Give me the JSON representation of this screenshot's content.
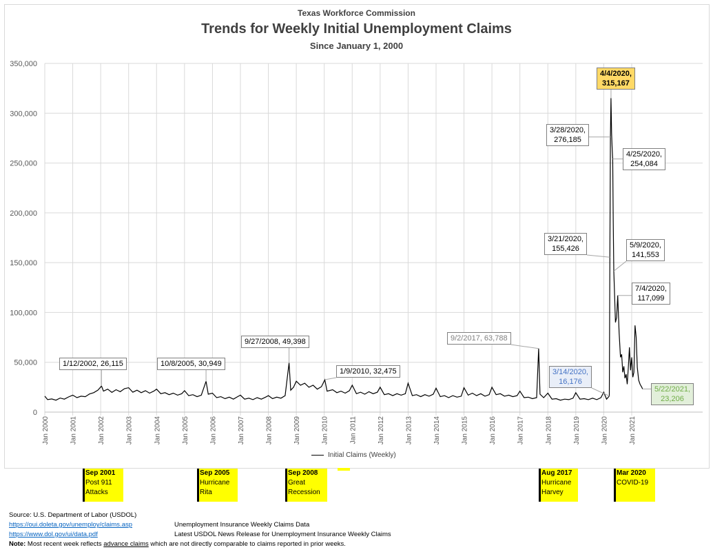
{
  "header": {
    "org": "Texas Workforce Commission",
    "title": "Trends for Weekly Initial Unemployment Claims",
    "subtitle": "Since January 1, 2000"
  },
  "chart_data": {
    "type": "line",
    "title": "Trends for Weekly Initial Unemployment Claims",
    "xlabel": "",
    "ylabel": "",
    "ylim": [
      0,
      350000
    ],
    "yticks": [
      0,
      50000,
      100000,
      150000,
      200000,
      250000,
      300000,
      350000
    ],
    "ytick_labels": [
      "0",
      "50,000",
      "100,000",
      "150,000",
      "200,000",
      "250,000",
      "300,000",
      "350,000"
    ],
    "xlim": [
      2000,
      2021.5
    ],
    "xtick_labels": [
      "Jan 2000",
      "Jan 2001",
      "Jan 2002",
      "Jan 2003",
      "Jan 2004",
      "Jan 2005",
      "Jan 2006",
      "Jan 2007",
      "Jan 2008",
      "Jan 2009",
      "Jan 2010",
      "Jan 2011",
      "Jan 2012",
      "Jan 2013",
      "Jan 2014",
      "Jan 2015",
      "Jan 2016",
      "Jan 2017",
      "Jan 2018",
      "Jan 2019",
      "Jan 2020",
      "Jan 2021"
    ],
    "grid": true,
    "legend": {
      "position": "bottom",
      "label": "Initial Claims (Weekly)"
    },
    "series": [
      {
        "name": "Initial Claims (Weekly)",
        "color": "#000000",
        "points": [
          [
            2000.0,
            16000
          ],
          [
            2000.1,
            12500
          ],
          [
            2000.25,
            13200
          ],
          [
            2000.4,
            12000
          ],
          [
            2000.55,
            14100
          ],
          [
            2000.7,
            13000
          ],
          [
            2000.85,
            15200
          ],
          [
            2001.0,
            17000
          ],
          [
            2001.15,
            14500
          ],
          [
            2001.3,
            16000
          ],
          [
            2001.45,
            15500
          ],
          [
            2001.6,
            18200
          ],
          [
            2001.75,
            19500
          ],
          [
            2001.9,
            22000
          ],
          [
            2002.03,
            26115
          ],
          [
            2002.1,
            21000
          ],
          [
            2002.25,
            23000
          ],
          [
            2002.4,
            19800
          ],
          [
            2002.55,
            22500
          ],
          [
            2002.7,
            20500
          ],
          [
            2002.85,
            23500
          ],
          [
            2003.0,
            24500
          ],
          [
            2003.15,
            20000
          ],
          [
            2003.3,
            22000
          ],
          [
            2003.45,
            19500
          ],
          [
            2003.6,
            21500
          ],
          [
            2003.75,
            19000
          ],
          [
            2003.9,
            21000
          ],
          [
            2004.0,
            23000
          ],
          [
            2004.15,
            18500
          ],
          [
            2004.3,
            19500
          ],
          [
            2004.45,
            17500
          ],
          [
            2004.6,
            19000
          ],
          [
            2004.75,
            17000
          ],
          [
            2004.9,
            18500
          ],
          [
            2005.0,
            21500
          ],
          [
            2005.15,
            16500
          ],
          [
            2005.3,
            17500
          ],
          [
            2005.45,
            15500
          ],
          [
            2005.6,
            17000
          ],
          [
            2005.77,
            30949
          ],
          [
            2005.85,
            18000
          ],
          [
            2006.0,
            19000
          ],
          [
            2006.15,
            14500
          ],
          [
            2006.3,
            15500
          ],
          [
            2006.45,
            13500
          ],
          [
            2006.6,
            15000
          ],
          [
            2006.75,
            13000
          ],
          [
            2006.9,
            15500
          ],
          [
            2007.0,
            17000
          ],
          [
            2007.15,
            13000
          ],
          [
            2007.3,
            14000
          ],
          [
            2007.45,
            12500
          ],
          [
            2007.6,
            14500
          ],
          [
            2007.75,
            13000
          ],
          [
            2007.9,
            15000
          ],
          [
            2008.0,
            16500
          ],
          [
            2008.15,
            13500
          ],
          [
            2008.3,
            15000
          ],
          [
            2008.45,
            14000
          ],
          [
            2008.6,
            16500
          ],
          [
            2008.74,
            49398
          ],
          [
            2008.8,
            22000
          ],
          [
            2008.9,
            25000
          ],
          [
            2009.0,
            31000
          ],
          [
            2009.15,
            27000
          ],
          [
            2009.3,
            29000
          ],
          [
            2009.45,
            25000
          ],
          [
            2009.6,
            27000
          ],
          [
            2009.75,
            23000
          ],
          [
            2009.9,
            25500
          ],
          [
            2010.02,
            32475
          ],
          [
            2010.1,
            21000
          ],
          [
            2010.3,
            22500
          ],
          [
            2010.45,
            19500
          ],
          [
            2010.6,
            21000
          ],
          [
            2010.75,
            19000
          ],
          [
            2010.9,
            21500
          ],
          [
            2011.0,
            27000
          ],
          [
            2011.15,
            18500
          ],
          [
            2011.3,
            20000
          ],
          [
            2011.45,
            18000
          ],
          [
            2011.6,
            20500
          ],
          [
            2011.75,
            18500
          ],
          [
            2011.9,
            20000
          ],
          [
            2012.0,
            25000
          ],
          [
            2012.15,
            17500
          ],
          [
            2012.3,
            18500
          ],
          [
            2012.45,
            16500
          ],
          [
            2012.6,
            18500
          ],
          [
            2012.75,
            17000
          ],
          [
            2012.9,
            18500
          ],
          [
            2013.0,
            29000
          ],
          [
            2013.15,
            16500
          ],
          [
            2013.3,
            17500
          ],
          [
            2013.45,
            15500
          ],
          [
            2013.6,
            17500
          ],
          [
            2013.75,
            16000
          ],
          [
            2013.9,
            18000
          ],
          [
            2014.0,
            24000
          ],
          [
            2014.15,
            15500
          ],
          [
            2014.3,
            16500
          ],
          [
            2014.45,
            14500
          ],
          [
            2014.6,
            16500
          ],
          [
            2014.75,
            15000
          ],
          [
            2014.9,
            16000
          ],
          [
            2015.0,
            24500
          ],
          [
            2015.15,
            17000
          ],
          [
            2015.3,
            19000
          ],
          [
            2015.45,
            16500
          ],
          [
            2015.6,
            18500
          ],
          [
            2015.75,
            16000
          ],
          [
            2015.9,
            17500
          ],
          [
            2016.0,
            25000
          ],
          [
            2016.15,
            17500
          ],
          [
            2016.3,
            18500
          ],
          [
            2016.45,
            16000
          ],
          [
            2016.6,
            17000
          ],
          [
            2016.75,
            15500
          ],
          [
            2016.9,
            16500
          ],
          [
            2017.0,
            21000
          ],
          [
            2017.15,
            14500
          ],
          [
            2017.3,
            15000
          ],
          [
            2017.45,
            13500
          ],
          [
            2017.6,
            14500
          ],
          [
            2017.67,
            63788
          ],
          [
            2017.72,
            18000
          ],
          [
            2017.85,
            14500
          ],
          [
            2018.0,
            19000
          ],
          [
            2018.15,
            13000
          ],
          [
            2018.3,
            13500
          ],
          [
            2018.45,
            12000
          ],
          [
            2018.6,
            13000
          ],
          [
            2018.75,
            12500
          ],
          [
            2018.9,
            14000
          ],
          [
            2019.0,
            19500
          ],
          [
            2019.15,
            13000
          ],
          [
            2019.3,
            13500
          ],
          [
            2019.45,
            12500
          ],
          [
            2019.6,
            14000
          ],
          [
            2019.75,
            12500
          ],
          [
            2019.9,
            14500
          ],
          [
            2020.0,
            20000
          ],
          [
            2020.1,
            13000
          ],
          [
            2020.2,
            16176
          ],
          [
            2020.22,
            155426
          ],
          [
            2020.24,
            276185
          ],
          [
            2020.26,
            315167
          ],
          [
            2020.28,
            280000
          ],
          [
            2020.3,
            265000
          ],
          [
            2020.32,
            254084
          ],
          [
            2020.34,
            190000
          ],
          [
            2020.36,
            141553
          ],
          [
            2020.38,
            125000
          ],
          [
            2020.42,
            90000
          ],
          [
            2020.46,
            95000
          ],
          [
            2020.5,
            117099
          ],
          [
            2020.55,
            80000
          ],
          [
            2020.6,
            55000
          ],
          [
            2020.64,
            58000
          ],
          [
            2020.68,
            40000
          ],
          [
            2020.72,
            46000
          ],
          [
            2020.76,
            34000
          ],
          [
            2020.8,
            38000
          ],
          [
            2020.84,
            28000
          ],
          [
            2020.88,
            45000
          ],
          [
            2020.92,
            65000
          ],
          [
            2020.96,
            42000
          ],
          [
            2021.0,
            55000
          ],
          [
            2021.04,
            35000
          ],
          [
            2021.08,
            40000
          ],
          [
            2021.12,
            87000
          ],
          [
            2021.16,
            75000
          ],
          [
            2021.2,
            45000
          ],
          [
            2021.25,
            32000
          ],
          [
            2021.3,
            28000
          ],
          [
            2021.36,
            25000
          ],
          [
            2021.39,
            23206
          ]
        ]
      }
    ],
    "annotations": [
      {
        "label": "1/12/2002, 26,115",
        "x": 2002.03,
        "y": 26115,
        "style": "plain"
      },
      {
        "label": "10/8/2005, 30,949",
        "x": 2005.77,
        "y": 30949,
        "style": "plain"
      },
      {
        "label": "9/27/2008, 49,398",
        "x": 2008.74,
        "y": 49398,
        "style": "plain"
      },
      {
        "label": "1/9/2010, 32,475",
        "x": 2010.02,
        "y": 32475,
        "style": "plain"
      },
      {
        "label": "9/2/2017, 63,788",
        "x": 2017.67,
        "y": 63788,
        "style": "grey"
      },
      {
        "label": "3/14/2020,\n16,176",
        "x": 2020.2,
        "y": 16176,
        "style": "blue"
      },
      {
        "label": "3/21/2020,\n155,426",
        "x": 2020.22,
        "y": 155426,
        "style": "plain"
      },
      {
        "label": "3/28/2020,\n276,185",
        "x": 2020.24,
        "y": 276185,
        "style": "plain"
      },
      {
        "label": "4/4/2020,\n315,167",
        "x": 2020.26,
        "y": 315167,
        "style": "peak"
      },
      {
        "label": "4/25/2020,\n254,084",
        "x": 2020.32,
        "y": 254084,
        "style": "plain"
      },
      {
        "label": "5/9/2020,\n141,553",
        "x": 2020.36,
        "y": 141553,
        "style": "plain"
      },
      {
        "label": "7/4/2020,\n117,099",
        "x": 2020.5,
        "y": 117099,
        "style": "plain"
      },
      {
        "label": "5/22/2021,\n23,206",
        "x": 2021.39,
        "y": 23206,
        "style": "latest"
      }
    ]
  },
  "events": [
    {
      "date": "Sep 2001",
      "line1": "Post 911",
      "line2": "Attacks"
    },
    {
      "date": "Sep 2005",
      "line1": "Hurricane",
      "line2": "Rita"
    },
    {
      "date": "Sep 2008",
      "line1": "Great",
      "line2": "Recession"
    },
    {
      "date": "Aug 2017",
      "line1": "Hurricane",
      "line2": "Harvey"
    },
    {
      "date": "Mar 2020",
      "line1": "COVID-19",
      "line2": ""
    }
  ],
  "footer": {
    "source": "Source: U.S. Department of Labor (USDOL)",
    "link1": "https://oui.doleta.gov/unemploy/claims.asp",
    "link1_desc": "Unemployment Insurance Weekly Claims Data",
    "link2": "https://www.dol.gov/ui/data.pdf",
    "link2_desc": "Latest USDOL News Release for Unemployment Insurance Weekly Claims",
    "note_label": "Note:",
    "note_pre": " Most recent week reflects ",
    "note_link": "advance claims",
    "note_post": " which are not directly comparable to claims reported in prior weeks."
  },
  "colors": {
    "peak": "#ffd966",
    "blue_bg": "#e9eef8",
    "blue_text": "#4472c4",
    "green_bg": "#e2efda",
    "green_text": "#70ad47",
    "grey_text": "#7f7f7f",
    "event": "#ffff00"
  }
}
